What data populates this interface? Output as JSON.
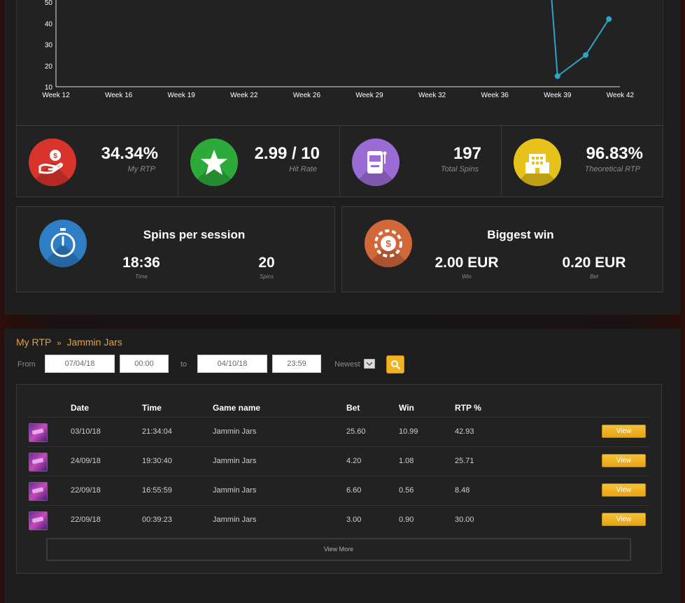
{
  "chart_data": {
    "type": "line",
    "x_ticks": [
      "Week 12",
      "Week 16",
      "Week 19",
      "Week 22",
      "Week 26",
      "Week 29",
      "Week 32",
      "Week 36",
      "Week 39",
      "Week 42"
    ],
    "y_ticks": [
      10,
      20,
      30,
      40,
      50
    ],
    "ylim": [
      10,
      50
    ],
    "series": [
      {
        "color": "#2ba6c9",
        "points": [
          {
            "x_index": 7.82,
            "y": 85
          },
          {
            "x_index": 8.0,
            "y": 15
          },
          {
            "x_index": 8.45,
            "y": 25
          },
          {
            "x_index": 8.82,
            "y": 42
          }
        ]
      }
    ]
  },
  "stats": [
    {
      "value": "34.34%",
      "label": "My RTP",
      "icon": "hand-coin-icon",
      "color": "#d9342b"
    },
    {
      "value": "2.99 / 10",
      "label": "Hit Rate",
      "icon": "star-icon",
      "color": "#2eaa3a"
    },
    {
      "value": "197",
      "label": "Total Spins",
      "icon": "slot-machine-icon",
      "color": "#9b6bd6"
    },
    {
      "value": "96.83%",
      "label": "Theoretical RTP",
      "icon": "building-icon",
      "color": "#e6c21a"
    }
  ],
  "spins_card": {
    "title": "Spins per session",
    "time_value": "18:36",
    "time_label": "Time",
    "spins_value": "20",
    "spins_label": "Spins",
    "icon": "stopwatch-icon",
    "color": "#2f7dc4"
  },
  "win_card": {
    "title": "Biggest win",
    "win_value": "2.00 EUR",
    "win_label": "Win",
    "bet_value": "0.20 EUR",
    "bet_label": "Bet",
    "icon": "casino-chip-icon",
    "color": "#d2673a"
  },
  "breadcrumb": {
    "root": "My RTP",
    "sep": "»",
    "current": "Jammin Jars"
  },
  "filters": {
    "from_label": "From",
    "from_date": "07/04/18",
    "from_time": "00:00",
    "to_label": "to",
    "to_date": "04/10/18",
    "to_time": "23:59",
    "sort": "Newest"
  },
  "table": {
    "headers": [
      "Date",
      "Time",
      "Game name",
      "Bet",
      "Win",
      "RTP %"
    ],
    "rows": [
      {
        "date": "03/10/18",
        "time": "21:34:04",
        "game": "Jammin Jars",
        "bet": "25.60",
        "win": "10.99",
        "rtp": "42.93",
        "action": "View"
      },
      {
        "date": "24/09/18",
        "time": "19:30:40",
        "game": "Jammin Jars",
        "bet": "4.20",
        "win": "1.08",
        "rtp": "25.71",
        "action": "View"
      },
      {
        "date": "22/09/18",
        "time": "16:55:59",
        "game": "Jammin Jars",
        "bet": "6.60",
        "win": "0.56",
        "rtp": "8.48",
        "action": "View"
      },
      {
        "date": "22/09/18",
        "time": "00:39:23",
        "game": "Jammin Jars",
        "bet": "3.00",
        "win": "0.90",
        "rtp": "30.00",
        "action": "View"
      }
    ],
    "view_more": "View More"
  }
}
